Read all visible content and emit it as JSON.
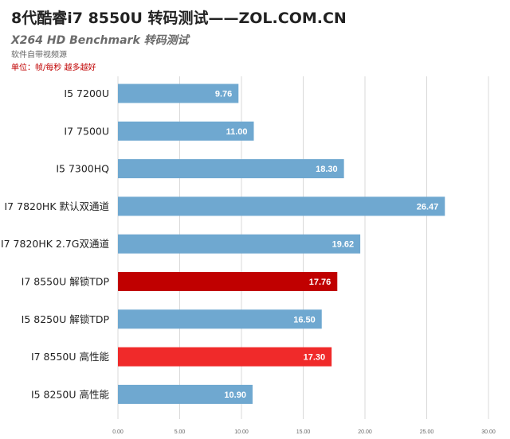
{
  "chart_data": {
    "type": "bar",
    "orientation": "horizontal",
    "title": "8代酷睿i7 8550U 转码测试——ZOL.COM.CN",
    "subtitle": "X264 HD Benchmark  转码测试",
    "notes": [
      "软件自带视频源",
      "单位：帧/每秒 越多越好"
    ],
    "categories": [
      "I5 7200U",
      "I7 7500U",
      "I5 7300HQ",
      "I7 7820HK  默认双通道",
      "I7 7820HK  2.7G双通道",
      "I7 8550U  解锁TDP",
      "I5 8250U  解锁TDP",
      "I7 8550U  高性能",
      "I5 8250U  高性能"
    ],
    "values": [
      9.76,
      11.0,
      18.3,
      26.47,
      19.62,
      17.76,
      16.5,
      17.3,
      10.9
    ],
    "value_labels": [
      "9.76",
      "11.00",
      "18.30",
      "26.47",
      "19.62",
      "17.76",
      "16.50",
      "17.30",
      "10.90"
    ],
    "bar_colors": [
      "#6fa8d0",
      "#6fa8d0",
      "#6fa8d0",
      "#6fa8d0",
      "#6fa8d0",
      "#c00000",
      "#6fa8d0",
      "#f02a2a",
      "#6fa8d0"
    ],
    "xlim": [
      0,
      30
    ],
    "xticks": [
      "0.00",
      "5.00",
      "10.00",
      "15.00",
      "20.00",
      "25.00",
      "30.00"
    ],
    "xlabel": "",
    "ylabel": "",
    "grid": true,
    "legend": "none"
  }
}
